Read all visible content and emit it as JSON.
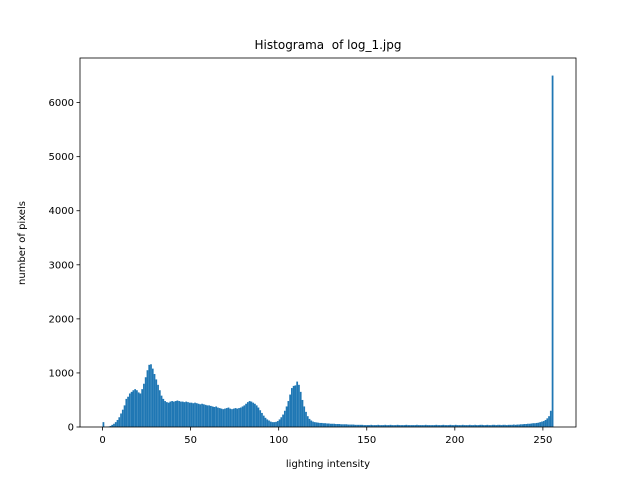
{
  "chart_data": {
    "type": "histogram",
    "title": "Histograma  of log_1.jpg",
    "x_label": "lighting intensity",
    "y_label": "number of pixels",
    "color": "#1f77b4",
    "bins": [
      0,
      1,
      2,
      3,
      4,
      5,
      6,
      7,
      8,
      9,
      10,
      11,
      12,
      13,
      14,
      15,
      16,
      17,
      18,
      19,
      20,
      21,
      22,
      23,
      24,
      25,
      26,
      27,
      28,
      29,
      30,
      31,
      32,
      33,
      34,
      35,
      36,
      37,
      38,
      39,
      40,
      41,
      42,
      43,
      44,
      45,
      46,
      47,
      48,
      49,
      50,
      51,
      52,
      53,
      54,
      55,
      56,
      57,
      58,
      59,
      60,
      61,
      62,
      63,
      64,
      65,
      66,
      67,
      68,
      69,
      70,
      71,
      72,
      73,
      74,
      75,
      76,
      77,
      78,
      79,
      80,
      81,
      82,
      83,
      84,
      85,
      86,
      87,
      88,
      89,
      90,
      91,
      92,
      93,
      94,
      95,
      96,
      97,
      98,
      99,
      100,
      101,
      102,
      103,
      104,
      105,
      106,
      107,
      108,
      109,
      110,
      111,
      112,
      113,
      114,
      115,
      116,
      117,
      118,
      119,
      120,
      121,
      122,
      123,
      124,
      125,
      126,
      127,
      128,
      129,
      130,
      131,
      132,
      133,
      134,
      135,
      136,
      137,
      138,
      139,
      140,
      141,
      142,
      143,
      144,
      145,
      146,
      147,
      148,
      149,
      150,
      151,
      152,
      153,
      154,
      155,
      156,
      157,
      158,
      159,
      160,
      161,
      162,
      163,
      164,
      165,
      166,
      167,
      168,
      169,
      170,
      171,
      172,
      173,
      174,
      175,
      176,
      177,
      178,
      179,
      180,
      181,
      182,
      183,
      184,
      185,
      186,
      187,
      188,
      189,
      190,
      191,
      192,
      193,
      194,
      195,
      196,
      197,
      198,
      199,
      200,
      201,
      202,
      203,
      204,
      205,
      206,
      207,
      208,
      209,
      210,
      211,
      212,
      213,
      214,
      215,
      216,
      217,
      218,
      219,
      220,
      221,
      222,
      223,
      224,
      225,
      226,
      227,
      228,
      229,
      230,
      231,
      232,
      233,
      234,
      235,
      236,
      237,
      238,
      239,
      240,
      241,
      242,
      243,
      244,
      245,
      246,
      247,
      248,
      249,
      250,
      251,
      252,
      253,
      254,
      255,
      256
    ],
    "values": [
      90,
      5,
      8,
      10,
      20,
      40,
      60,
      90,
      130,
      180,
      250,
      320,
      400,
      520,
      560,
      620,
      650,
      680,
      700,
      680,
      640,
      620,
      700,
      800,
      920,
      1050,
      1150,
      1160,
      1080,
      980,
      880,
      780,
      680,
      580,
      520,
      480,
      460,
      450,
      470,
      480,
      470,
      480,
      490,
      480,
      470,
      470,
      460,
      470,
      460,
      450,
      450,
      440,
      450,
      440,
      430,
      420,
      430,
      420,
      410,
      400,
      400,
      390,
      380,
      370,
      380,
      360,
      350,
      340,
      330,
      340,
      350,
      360,
      340,
      330,
      340,
      350,
      340,
      350,
      360,
      380,
      400,
      430,
      460,
      480,
      470,
      450,
      430,
      400,
      360,
      310,
      260,
      210,
      170,
      140,
      120,
      100,
      90,
      90,
      95,
      110,
      140,
      180,
      230,
      300,
      380,
      480,
      600,
      720,
      760,
      770,
      840,
      780,
      650,
      500,
      380,
      280,
      200,
      150,
      120,
      100,
      90,
      85,
      80,
      75,
      75,
      70,
      70,
      65,
      65,
      60,
      60,
      60,
      55,
      55,
      55,
      50,
      50,
      50,
      50,
      45,
      45,
      45,
      45,
      40,
      40,
      40,
      40,
      40,
      35,
      35,
      35,
      35,
      40,
      35,
      35,
      35,
      40,
      35,
      35,
      35,
      40,
      35,
      35,
      40,
      35,
      35,
      35,
      40,
      35,
      35,
      35,
      35,
      40,
      35,
      35,
      35,
      35,
      35,
      40,
      35,
      35,
      35,
      35,
      40,
      35,
      35,
      35,
      35,
      35,
      40,
      35,
      35,
      35,
      40,
      35,
      35,
      35,
      40,
      35,
      35,
      40,
      35,
      35,
      35,
      40,
      35,
      35,
      35,
      40,
      35,
      35,
      40,
      35,
      35,
      40,
      40,
      35,
      35,
      40,
      35,
      35,
      40,
      40,
      35,
      40,
      40,
      35,
      40,
      40,
      35,
      40,
      40,
      40,
      45,
      40,
      45,
      45,
      50,
      50,
      55,
      55,
      60,
      60,
      65,
      70,
      70,
      75,
      80,
      90,
      100,
      110,
      130,
      160,
      200,
      300,
      6500
    ],
    "xlim": [
      -12.8,
      268.8
    ],
    "ylim": [
      0,
      6825
    ],
    "xticks": [
      0,
      50,
      100,
      150,
      200,
      250
    ],
    "yticks": [
      0,
      1000,
      2000,
      3000,
      4000,
      5000,
      6000
    ]
  }
}
